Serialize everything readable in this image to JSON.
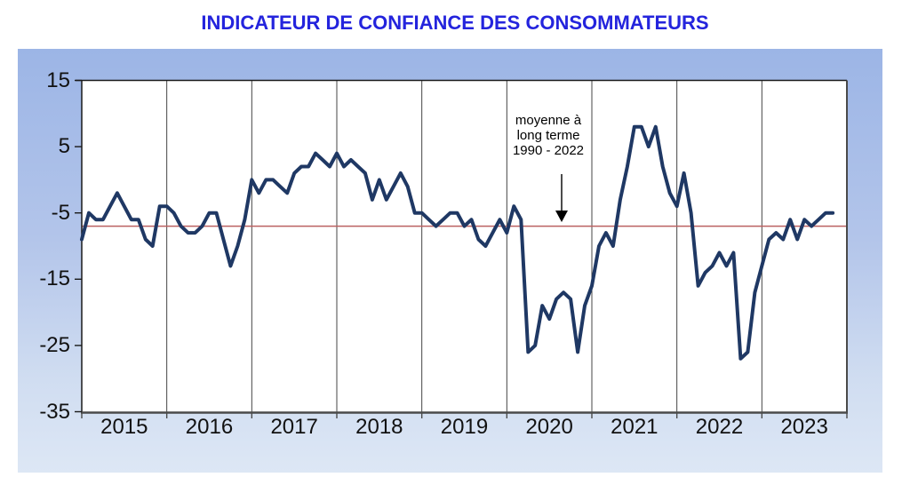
{
  "title": {
    "text": "INDICATEUR DE CONFIANCE DES CONSOMMATEURS",
    "color": "#2424dd"
  },
  "annotation": {
    "line1": "moyenne à",
    "line2": "long terme",
    "line3": "1990 - 2022"
  },
  "chart_data": {
    "type": "line",
    "title": "INDICATEUR DE CONFIANCE DES CONSOMMATEURS",
    "xlabel": "",
    "ylabel": "",
    "ylim": [
      -35,
      15
    ],
    "y_tick_labels": [
      "15",
      "5",
      "-5",
      "-15",
      "-25",
      "-35"
    ],
    "y_tick_values": [
      15,
      5,
      -5,
      -15,
      -25,
      -35
    ],
    "x_tick_labels": [
      "2015",
      "2016",
      "2017",
      "2018",
      "2019",
      "2020",
      "2021",
      "2022",
      "2023"
    ],
    "grid": "vertical-year-lines-only",
    "legend_position": "none",
    "x_start": "2015-01",
    "x_end": "2023-11",
    "reference_line": {
      "label": "moyenne à long terme 1990 - 2022",
      "value": -7,
      "color": "#bb6161"
    },
    "series": [
      {
        "name": "indicateur de confiance des consommateurs (mensuel)",
        "color": "#1f3864",
        "values_by_year": {
          "2015": [
            -9,
            -5,
            -6,
            -6,
            -4,
            -2,
            -4,
            -6,
            -6,
            -9,
            -10,
            -4
          ],
          "2016": [
            -4,
            -5,
            -7,
            -8,
            -8,
            -7,
            -5,
            -5,
            -9,
            -13,
            -10,
            -6
          ],
          "2017": [
            0,
            -2,
            0,
            0,
            -1,
            -2,
            1,
            2,
            2,
            4,
            3,
            2
          ],
          "2018": [
            4,
            2,
            3,
            2,
            1,
            -3,
            0,
            -3,
            -1,
            1,
            -1,
            -5
          ],
          "2019": [
            -5,
            -6,
            -7,
            -6,
            -5,
            -5,
            -7,
            -6,
            -9,
            -10,
            -8,
            -6
          ],
          "2020": [
            -8,
            -4,
            -6,
            -26,
            -25,
            -19,
            -21,
            -18,
            -17,
            -18,
            -26,
            -19
          ],
          "2021": [
            -16,
            -10,
            -8,
            -10,
            -3,
            2,
            8,
            8,
            5,
            8,
            2,
            -2
          ],
          "2022": [
            -4,
            1,
            -5,
            -16,
            -14,
            -13,
            -11,
            -13,
            -11,
            -27,
            -26,
            -17
          ],
          "2023": [
            -13,
            -9,
            -8,
            -9,
            -6,
            -9,
            -6,
            -7,
            -6,
            -5,
            -5
          ]
        }
      }
    ]
  },
  "colors": {
    "series_line": "#1f3864",
    "reference_line": "#bb6161",
    "axis_dark": "#1a1a1a",
    "axis_gray": "#4a4a4a",
    "gridline": "#444444",
    "plot_bg": "#ffffff",
    "panel_top": "#9cb5e6",
    "panel_bottom": "#dde7f5",
    "label_text": "#111111",
    "annotation_text": "#000000"
  }
}
